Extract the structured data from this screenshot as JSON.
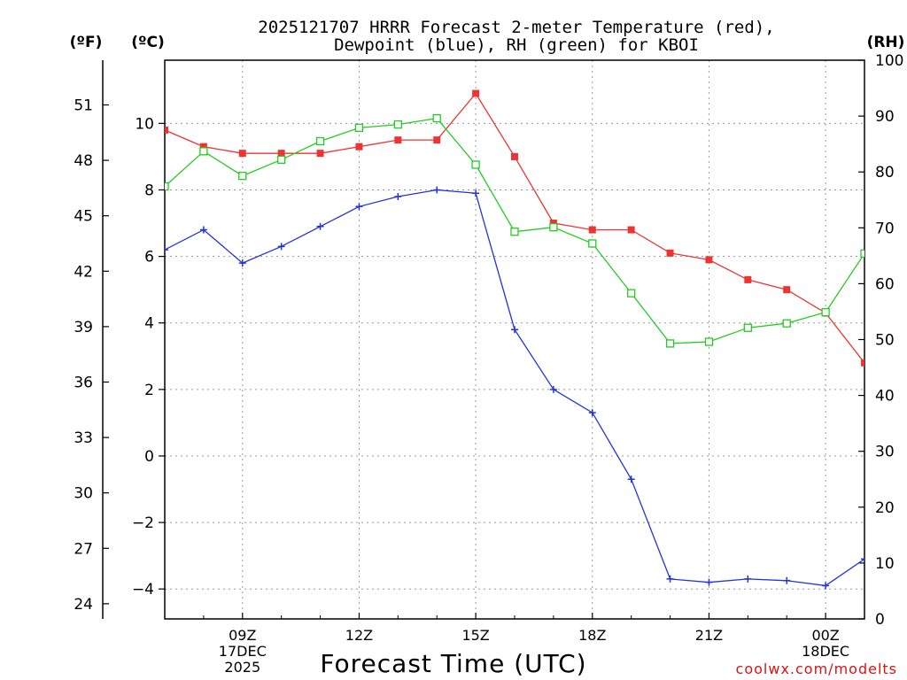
{
  "chart_data": {
    "type": "line",
    "title_line1": "2025121707 HRRR Forecast 2-meter Temperature (red),",
    "title_line2": "Dewpoint (blue), RH (green) for KBOI",
    "xlabel": "Forecast Time (UTC)",
    "left_unit_f": "(ºF)",
    "left_unit_c": "(ºC)",
    "right_unit": "(RH)",
    "x_hours": [
      7,
      8,
      9,
      10,
      11,
      12,
      13,
      14,
      15,
      16,
      17,
      18,
      19,
      20,
      21,
      22,
      23,
      24,
      25
    ],
    "x_ticks": [
      {
        "hour": 9,
        "label": "09Z",
        "sub1": "17DEC",
        "sub2": "2025"
      },
      {
        "hour": 12,
        "label": "12Z",
        "sub1": "",
        "sub2": ""
      },
      {
        "hour": 15,
        "label": "15Z",
        "sub1": "",
        "sub2": ""
      },
      {
        "hour": 18,
        "label": "18Z",
        "sub1": "",
        "sub2": ""
      },
      {
        "hour": 21,
        "label": "21Z",
        "sub1": "",
        "sub2": ""
      },
      {
        "hour": 24,
        "label": "00Z",
        "sub1": "18DEC",
        "sub2": ""
      }
    ],
    "celsius_range": [
      -4.9,
      11.9
    ],
    "celsius_ticks": [
      "-4",
      "-2",
      "0",
      "2",
      "4",
      "6",
      "8",
      "10"
    ],
    "fahrenheit_ticks": [
      "24",
      "27",
      "30",
      "33",
      "36",
      "39",
      "42",
      "45",
      "48",
      "51"
    ],
    "rh_range": [
      0,
      100
    ],
    "rh_ticks": [
      "0",
      "10",
      "20",
      "30",
      "40",
      "50",
      "60",
      "70",
      "80",
      "90",
      "100"
    ],
    "series": [
      {
        "name": "Temperature",
        "unit": "C",
        "color": "#ee3333",
        "marker": "filled-square",
        "values": [
          9.8,
          9.3,
          9.1,
          9.1,
          9.1,
          9.3,
          9.5,
          9.5,
          10.9,
          9.0,
          7.0,
          6.8,
          6.8,
          6.1,
          5.9,
          5.3,
          5.0,
          4.3,
          2.8
        ]
      },
      {
        "name": "Dewpoint",
        "unit": "C",
        "color": "#2233dd",
        "marker": "plus",
        "values": [
          6.2,
          6.8,
          5.8,
          6.3,
          6.9,
          7.5,
          7.8,
          8.0,
          7.9,
          3.8,
          2.0,
          1.3,
          -0.7,
          -3.7,
          -3.8,
          -3.7,
          -3.75,
          -3.9,
          -3.1
        ]
      },
      {
        "name": "RH",
        "unit": "%",
        "color": "#22cc22",
        "marker": "open-square",
        "values": [
          77.4,
          83.7,
          79.3,
          82.2,
          85.5,
          87.9,
          88.5,
          89.6,
          81.3,
          69.3,
          70.1,
          67.2,
          58.3,
          49.3,
          49.6,
          52.1,
          52.9,
          54.9,
          65.4
        ]
      }
    ]
  },
  "credit": "coolwx.com/modelts"
}
